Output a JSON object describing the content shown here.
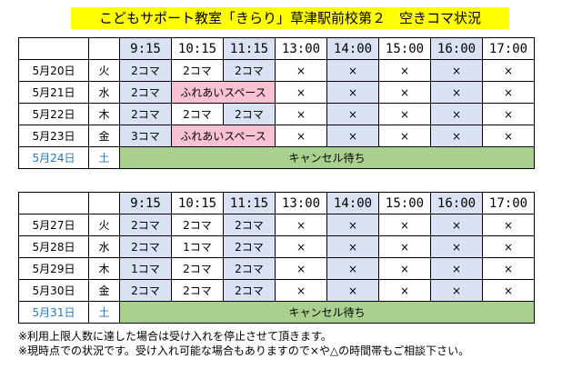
{
  "title": "こどもサポート教室「きらり」草津駅前校第２　空きコマ状況",
  "time_slots": [
    "9:15",
    "10:15",
    "11:15",
    "13:00",
    "14:00",
    "15:00",
    "16:00",
    "17:00"
  ],
  "weeks": [
    {
      "rows": [
        {
          "date": "5月20日",
          "dow": "火",
          "cells": [
            "2コマ",
            "2コマ",
            "2コマ",
            "×",
            "×",
            "×",
            "×",
            "×"
          ]
        },
        {
          "date": "5月21日",
          "dow": "水",
          "cells": [
            "2コマ",
            "ふれあいスペース",
            "×",
            "×",
            "×",
            "×",
            "×"
          ]
        },
        {
          "date": "5月22日",
          "dow": "木",
          "cells": [
            "2コマ",
            "2コマ",
            "2コマ",
            "×",
            "×",
            "×",
            "×",
            "×"
          ]
        },
        {
          "date": "5月23日",
          "dow": "金",
          "cells": [
            "3コマ",
            "ふれあいスペース",
            "×",
            "×",
            "×",
            "×",
            "×"
          ]
        },
        {
          "date": "5月24日",
          "dow": "土",
          "cells": [
            "キャンセル待ち"
          ]
        }
      ]
    },
    {
      "rows": [
        {
          "date": "5月27日",
          "dow": "火",
          "cells": [
            "2コマ",
            "2コマ",
            "2コマ",
            "×",
            "×",
            "×",
            "×",
            "×"
          ]
        },
        {
          "date": "5月28日",
          "dow": "水",
          "cells": [
            "2コマ",
            "1コマ",
            "2コマ",
            "×",
            "×",
            "×",
            "×",
            "×"
          ]
        },
        {
          "date": "5月29日",
          "dow": "木",
          "cells": [
            "1コマ",
            "2コマ",
            "2コマ",
            "×",
            "×",
            "×",
            "×",
            "×"
          ]
        },
        {
          "date": "5月30日",
          "dow": "金",
          "cells": [
            "2コマ",
            "2コマ",
            "2コマ",
            "×",
            "×",
            "×",
            "×",
            "×"
          ]
        },
        {
          "date": "5月31日",
          "dow": "土",
          "cells": [
            "キャンセル待ち"
          ]
        }
      ]
    }
  ],
  "notes": [
    "※利用上限人数に達した場合は受け入れを停止させて頂きます。",
    "※現時点での状況です。受け入れ可能な場合もありますので×や△の時間帯もご相談下さい。"
  ],
  "colors": {
    "title_bg": "#ffff00",
    "blue_column": "#dae1f3",
    "fureai": "#f8c2d4",
    "cancel_wait": "#a9d08e",
    "saturday_text": "#2e75b6"
  }
}
